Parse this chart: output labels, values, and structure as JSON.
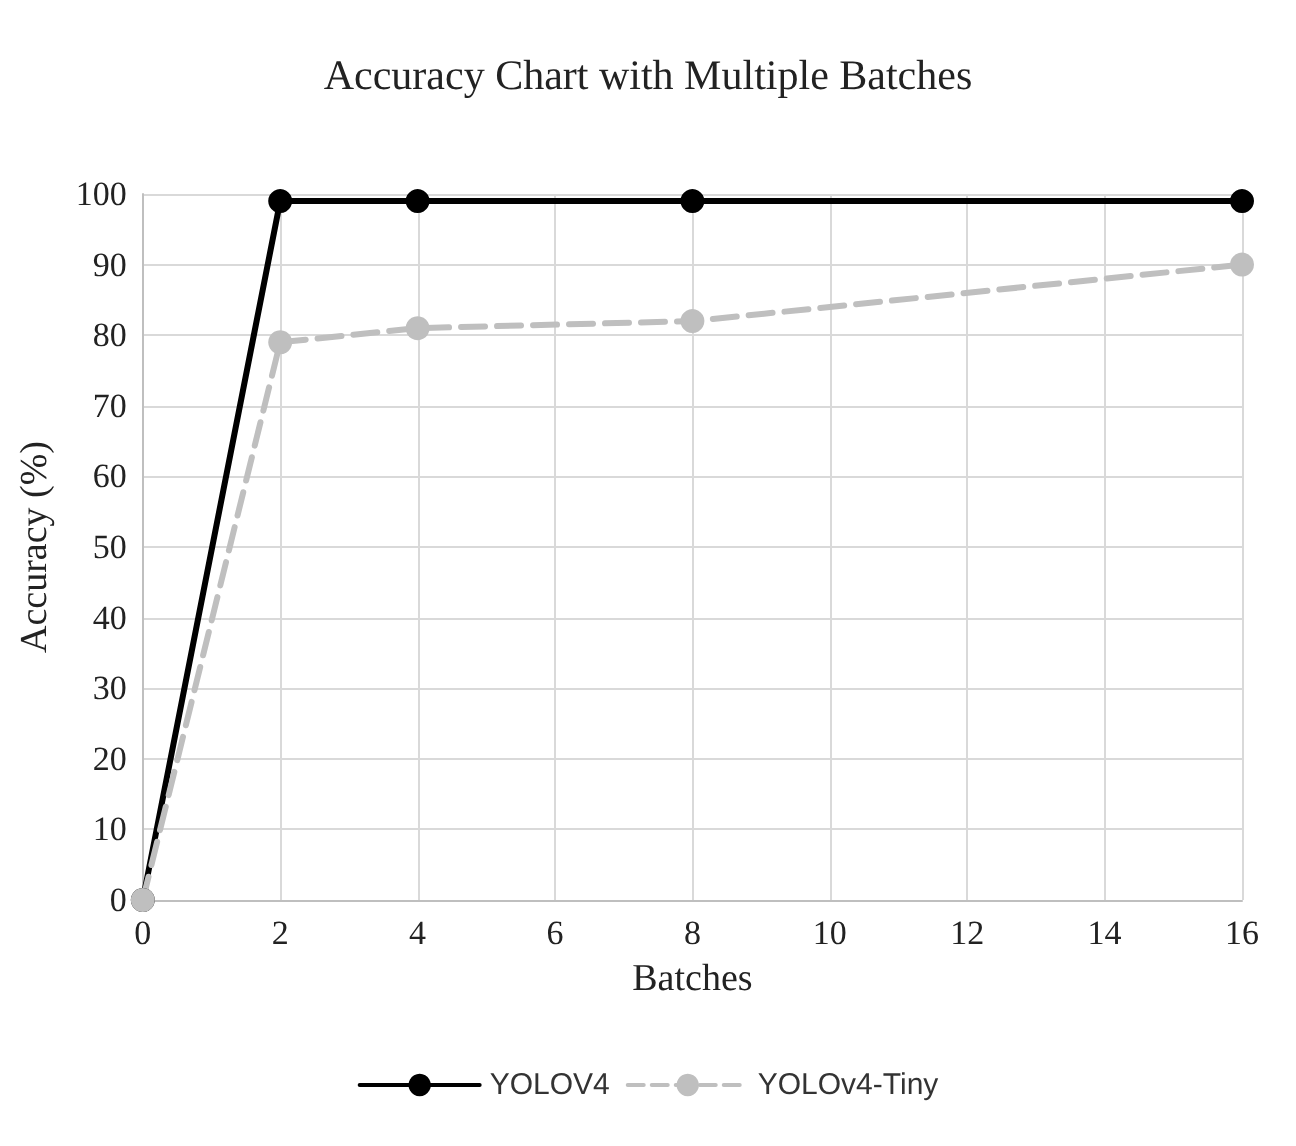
{
  "chart_data": {
    "type": "line",
    "title": "Accuracy Chart with Multiple Batches",
    "xlabel": "Batches",
    "ylabel": "Accuracy (%)",
    "x": [
      0,
      2,
      4,
      8,
      16
    ],
    "series": [
      {
        "name": "YOLOV4",
        "color": "#000000",
        "values": [
          0,
          99,
          99,
          99,
          99
        ],
        "line_style": "solid"
      },
      {
        "name": "YOLOv4-Tiny",
        "color": "#bfbfbf",
        "values": [
          0,
          79,
          81,
          82,
          90
        ],
        "line_style": "dashed"
      }
    ],
    "xlim": [
      0,
      16
    ],
    "xticks": [
      0,
      2,
      4,
      6,
      8,
      10,
      12,
      14,
      16
    ],
    "ylim": [
      0,
      100
    ],
    "yticks": [
      0,
      10,
      20,
      30,
      40,
      50,
      60,
      70,
      80,
      90,
      100
    ],
    "grid": true,
    "legend": "bottom",
    "marker": "circle"
  }
}
